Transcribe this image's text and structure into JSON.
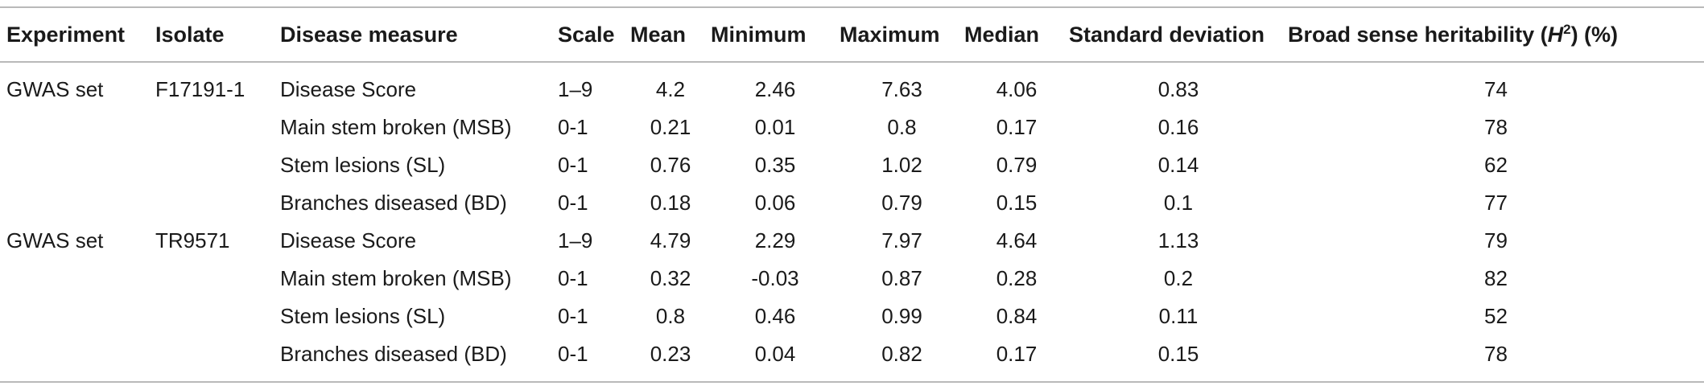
{
  "headers": {
    "experiment": "Experiment",
    "isolate": "Isolate",
    "disease_measure": "Disease measure",
    "scale": "Scale",
    "mean": "Mean",
    "minimum": "Minimum",
    "maximum": "Maximum",
    "median": "Median",
    "std_dev": "Standard deviation",
    "heritability_pre": "Broad sense heritability (",
    "heritability_h": "H",
    "heritability_sup": "2",
    "heritability_post": ") (%)"
  },
  "rows": [
    {
      "experiment": "GWAS set",
      "isolate": "F17191-1",
      "measure": "Disease Score",
      "scale": "1–9",
      "mean": "4.2",
      "min": "2.46",
      "max": "7.63",
      "median": "4.06",
      "sd": "0.83",
      "h2": "74"
    },
    {
      "experiment": "",
      "isolate": "",
      "measure": "Main stem broken (MSB)",
      "scale": "0-1",
      "mean": "0.21",
      "min": "0.01",
      "max": "0.8",
      "median": "0.17",
      "sd": "0.16",
      "h2": "78"
    },
    {
      "experiment": "",
      "isolate": "",
      "measure": "Stem lesions (SL)",
      "scale": "0-1",
      "mean": "0.76",
      "min": "0.35",
      "max": "1.02",
      "median": "0.79",
      "sd": "0.14",
      "h2": "62"
    },
    {
      "experiment": "",
      "isolate": "",
      "measure": "Branches diseased (BD)",
      "scale": "0-1",
      "mean": "0.18",
      "min": "0.06",
      "max": "0.79",
      "median": "0.15",
      "sd": "0.1",
      "h2": "77"
    },
    {
      "experiment": "GWAS set",
      "isolate": "TR9571",
      "measure": "Disease Score",
      "scale": "1–9",
      "mean": "4.79",
      "min": "2.29",
      "max": "7.97",
      "median": "4.64",
      "sd": "1.13",
      "h2": "79"
    },
    {
      "experiment": "",
      "isolate": "",
      "measure": "Main stem broken (MSB)",
      "scale": "0-1",
      "mean": "0.32",
      "min": "-0.03",
      "max": "0.87",
      "median": "0.28",
      "sd": "0.2",
      "h2": "82"
    },
    {
      "experiment": "",
      "isolate": "",
      "measure": "Stem lesions (SL)",
      "scale": "0-1",
      "mean": "0.8",
      "min": "0.46",
      "max": "0.99",
      "median": "0.84",
      "sd": "0.11",
      "h2": "52"
    },
    {
      "experiment": "",
      "isolate": "",
      "measure": "Branches diseased (BD)",
      "scale": "0-1",
      "mean": "0.23",
      "min": "0.04",
      "max": "0.82",
      "median": "0.17",
      "sd": "0.15",
      "h2": "78"
    }
  ]
}
